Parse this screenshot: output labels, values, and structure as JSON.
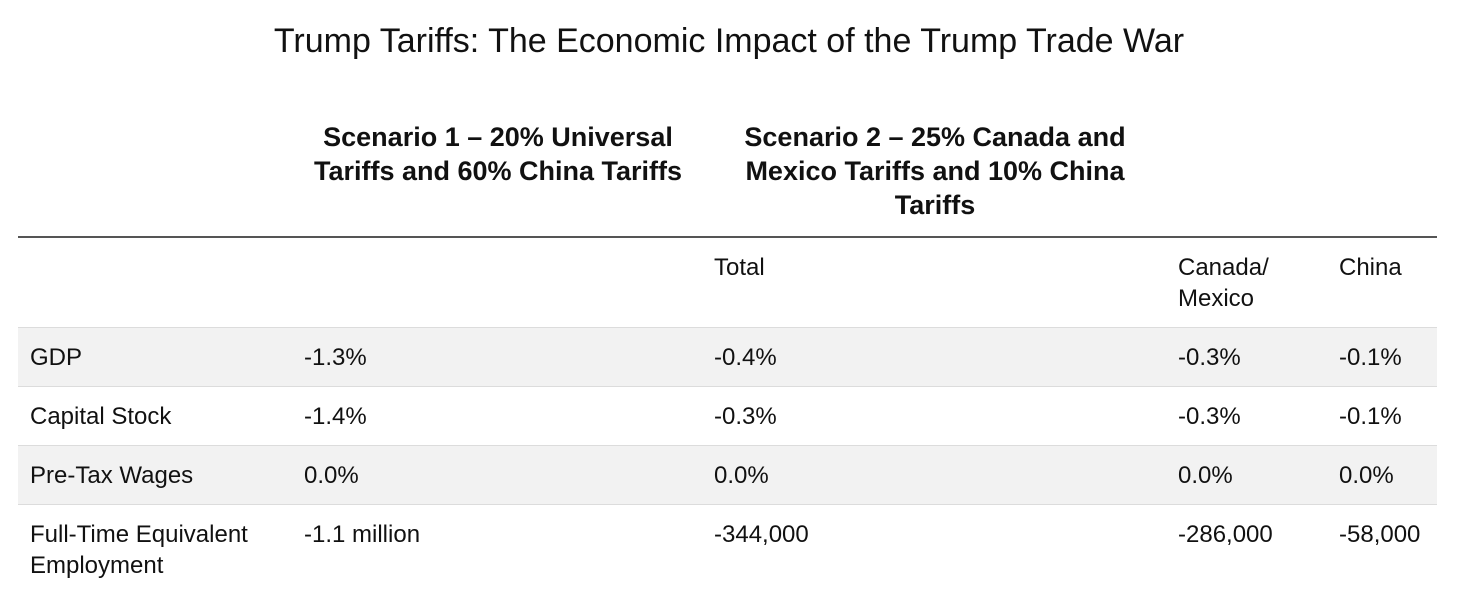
{
  "title": "Trump Tariffs: The Economic Impact of the Trump Trade War",
  "scenarios": {
    "scenario_1": "Scenario 1 – 20% Universal Tariffs and 60% China Tariffs",
    "scenario_2": "Scenario 2 – 25% Canada and Mexico Tariffs and 10% China Tariffs"
  },
  "table": {
    "columns": {
      "label": "",
      "scenario_1": "",
      "total": "Total",
      "canada_mexico": "Canada/ Mexico",
      "china": "China"
    },
    "rows": [
      {
        "label": "GDP",
        "scenario_1": "-1.3%",
        "total": "-0.4%",
        "canada_mexico": "-0.3%",
        "china": "-0.1%"
      },
      {
        "label": "Capital Stock",
        "scenario_1": "-1.4%",
        "total": "-0.3%",
        "canada_mexico": "-0.3%",
        "china": "-0.1%"
      },
      {
        "label": "Pre-Tax Wages",
        "scenario_1": "0.0%",
        "total": "0.0%",
        "canada_mexico": "0.0%",
        "china": "0.0%"
      },
      {
        "label": "Full-Time Equivalent Employment",
        "scenario_1": "-1.1 million",
        "total": "-344,000",
        "canada_mexico": "-286,000",
        "china": "-58,000"
      }
    ]
  },
  "colors": {
    "shaded_row": "#f2f2f2",
    "rule": "#555555",
    "text": "#111111"
  }
}
